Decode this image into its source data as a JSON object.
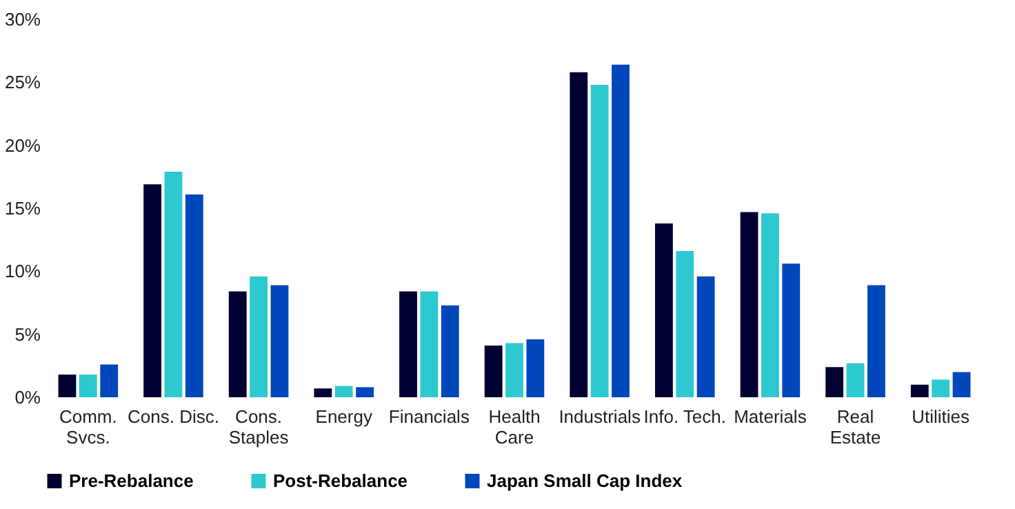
{
  "chart_data": {
    "type": "bar",
    "categories": [
      "Comm.\nSvcs.",
      "Cons. Disc.",
      "Cons.\nStaples",
      "Energy",
      "Financials",
      "Health\nCare",
      "Industrials",
      "Info. Tech.",
      "Materials",
      "Real\nEstate",
      "Utilities"
    ],
    "series": [
      {
        "name": "Pre-Rebalance",
        "color": "#000033",
        "values": [
          1.8,
          16.9,
          8.4,
          0.7,
          8.4,
          4.1,
          25.8,
          13.8,
          14.7,
          2.4,
          1.0
        ]
      },
      {
        "name": "Post-Rebalance",
        "color": "#2ec8d0",
        "values": [
          1.8,
          17.9,
          9.6,
          0.9,
          8.4,
          4.3,
          24.8,
          11.6,
          14.6,
          2.7,
          1.4
        ]
      },
      {
        "name": "Japan Small Cap Index",
        "color": "#0047bb",
        "values": [
          2.6,
          16.1,
          8.9,
          0.8,
          7.3,
          4.6,
          26.4,
          9.6,
          10.6,
          8.9,
          2.0
        ]
      }
    ],
    "ylim": [
      0,
      30
    ],
    "yticks": [
      {
        "value": 0,
        "label": "0%"
      },
      {
        "value": 5,
        "label": "5%"
      },
      {
        "value": 10,
        "label": "10%"
      },
      {
        "value": 15,
        "label": "15%"
      },
      {
        "value": 20,
        "label": "20%"
      },
      {
        "value": 25,
        "label": "25%"
      },
      {
        "value": 30,
        "label": "30%"
      }
    ],
    "grid": false,
    "legend": "bottom"
  }
}
